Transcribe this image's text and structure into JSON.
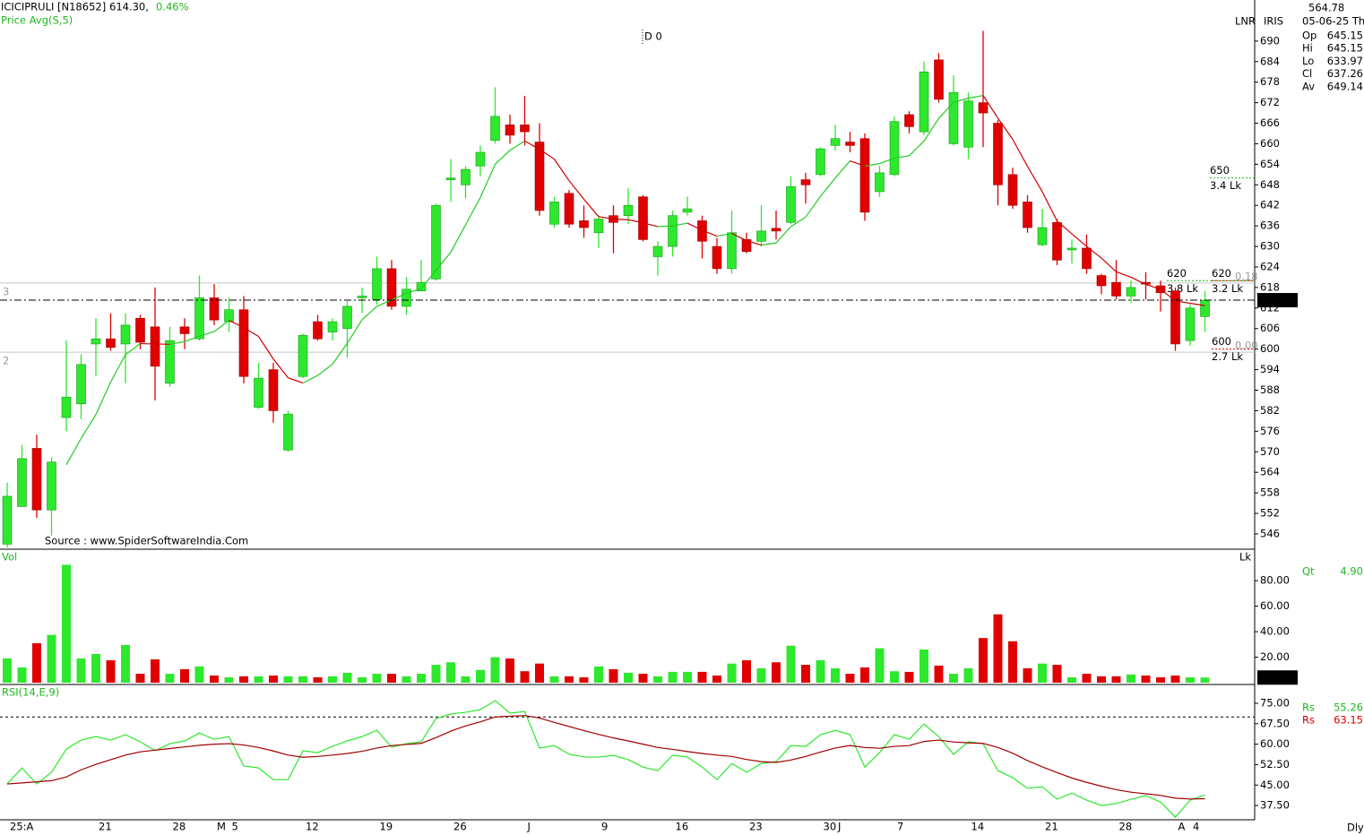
{
  "header": {
    "symbol": "ICICIPRULI [N18652]",
    "price": "614.30,",
    "change": "0.46%",
    "marker": "D 0",
    "source": "Source : www.SpiderSoftwareIndia.Com",
    "period": "Dly"
  },
  "info": {
    "value": "564.78",
    "date": "05-06-25 Th",
    "mode": "LNR",
    "name": "IRIS",
    "fields": [
      {
        "label": "Op",
        "value": "645.15"
      },
      {
        "label": "Hi",
        "value": "645.15"
      },
      {
        "label": "Lo",
        "value": "633.97"
      },
      {
        "label": "Cl",
        "value": "637.26"
      },
      {
        "label": "Av",
        "value": "649.14"
      }
    ],
    "qt": {
      "label": "Qt",
      "value": "4.90"
    },
    "rs": [
      {
        "label": "Rs",
        "value": "55.26"
      },
      {
        "label": "Rs",
        "value": "63.15"
      }
    ]
  },
  "chart_data": [
    {
      "type": "candlestick",
      "categories": [
        "25:A",
        null,
        null,
        null,
        null,
        null,
        "21",
        null,
        null,
        null,
        null,
        "28",
        null,
        null,
        "M",
        "5",
        null,
        null,
        null,
        null,
        "12",
        null,
        null,
        null,
        null,
        "19",
        null,
        null,
        null,
        null,
        "26",
        null,
        null,
        null,
        null,
        "J",
        null,
        null,
        null,
        null,
        "9",
        null,
        null,
        null,
        null,
        "16",
        null,
        null,
        null,
        null,
        "23",
        null,
        null,
        null,
        null,
        "30",
        "J",
        null,
        null,
        null,
        "7",
        null,
        null,
        null,
        null,
        "14",
        null,
        null,
        null,
        null,
        "21",
        null,
        null,
        null,
        null,
        "28",
        null,
        null,
        null,
        "A",
        "4",
        null
      ],
      "open": [
        543,
        554,
        571,
        553,
        580,
        584,
        601.5,
        603,
        601.5,
        609,
        606.5,
        590,
        606.5,
        603,
        615,
        608,
        611.5,
        583,
        594,
        570.5,
        592,
        608,
        605,
        606,
        615,
        614.5,
        623.5,
        612.5,
        617,
        620.5,
        649.5,
        648,
        653.5,
        661,
        665.5,
        665.5,
        660.5,
        636.5,
        645.5,
        637.5,
        634,
        639,
        639,
        644.5,
        627,
        630,
        640,
        637.5,
        630,
        623.5,
        632,
        631.5,
        635.3,
        637,
        649.5,
        651,
        659.5,
        660.5,
        661.5,
        646,
        651,
        668.5,
        663.5,
        684.5,
        660,
        659,
        672,
        666,
        651,
        643,
        630.5,
        637,
        629,
        629.5,
        621.5,
        619.5,
        615.5,
        619.5,
        618.5,
        617,
        602.5,
        609.5
      ],
      "high": [
        561,
        572,
        575,
        568.5,
        602.5,
        598.5,
        609,
        610.5,
        610.5,
        610,
        618,
        606.5,
        609,
        621.5,
        619,
        615,
        615.5,
        596,
        596,
        582,
        604.5,
        610,
        609,
        614,
        618,
        627,
        626,
        621,
        626,
        642.5,
        655.5,
        653.5,
        659.5,
        676.5,
        668.5,
        674,
        666,
        644.5,
        646.5,
        642,
        639,
        642,
        647,
        645,
        631.5,
        640.5,
        644.5,
        639,
        632.5,
        640.5,
        634,
        642,
        640.5,
        650.5,
        651.5,
        659,
        665.5,
        663.5,
        663,
        653.5,
        668,
        669.5,
        684,
        686.5,
        680,
        675,
        693,
        667,
        653,
        645,
        641,
        638,
        632,
        633.5,
        622,
        626,
        620,
        622.5,
        620,
        618,
        613,
        617
      ],
      "low": [
        542,
        554,
        550.7,
        545.5,
        576,
        579.5,
        592,
        599.5,
        590,
        600,
        585,
        589,
        600,
        602.5,
        607,
        605,
        590,
        582.5,
        578.5,
        570,
        591.5,
        602.5,
        602.5,
        597.5,
        610.5,
        613,
        611.5,
        610,
        617,
        620,
        643,
        644,
        650.5,
        660,
        660,
        659.5,
        639,
        635.5,
        635.5,
        632.5,
        629.5,
        628,
        636.5,
        631.5,
        621.5,
        627,
        639,
        626.5,
        622,
        622,
        628,
        630,
        632,
        636.5,
        642.5,
        650.5,
        658,
        657.5,
        637.5,
        644.5,
        650.5,
        663,
        662.5,
        672,
        659.5,
        655.5,
        659,
        642,
        641,
        634,
        630,
        624.5,
        625,
        622,
        616,
        614.5,
        613.5,
        614.5,
        611,
        599.5,
        601,
        605
      ],
      "close": [
        557,
        568,
        553,
        567,
        586,
        595.5,
        603,
        600.5,
        607,
        602,
        595,
        602.5,
        604.5,
        615,
        608.5,
        611.5,
        592,
        591.5,
        582,
        581,
        604,
        603,
        608,
        612.5,
        615.5,
        623.5,
        612.5,
        617.5,
        619.5,
        642,
        650,
        652.5,
        657.5,
        668,
        662.5,
        663.5,
        640.5,
        643,
        636.5,
        635.5,
        638,
        637,
        642,
        632,
        630,
        639,
        641,
        631.5,
        623.5,
        634,
        628.5,
        634.5,
        634.5,
        647.5,
        648,
        658.5,
        661.5,
        659.5,
        640,
        651.5,
        666.5,
        665,
        681,
        673,
        675,
        672.5,
        669,
        648,
        642,
        635.5,
        635.5,
        626,
        629.5,
        623.5,
        618.5,
        615.5,
        618,
        619,
        616.5,
        601.5,
        612,
        614.3
      ],
      "series": [
        {
          "name": "Price Avg(S,5)",
          "values": [
            null,
            null,
            null,
            null,
            566.2,
            573.9,
            580.9,
            590.4,
            598.4,
            601.6,
            601.5,
            601.4,
            602.2,
            603.8,
            605.1,
            608.4,
            606.3,
            603.7,
            597.1,
            591.6,
            590.1,
            592.3,
            595.6,
            601.7,
            608.6,
            612.5,
            614.4,
            616.3,
            617.7,
            623,
            628.3,
            636.3,
            644.3,
            654,
            658.1,
            660.8,
            658.4,
            655.5,
            649.2,
            643.8,
            638.7,
            638,
            637.8,
            636.9,
            635.8,
            636,
            636.8,
            634.7,
            633,
            633.8,
            631.7,
            630.4,
            631,
            635.8,
            638.6,
            644.6,
            650,
            655,
            653.5,
            654.2,
            655.8,
            656.5,
            660.8,
            667.4,
            672.1,
            673.3,
            674.1,
            667.5,
            661.3,
            653.4,
            646,
            637.4,
            633.7,
            630,
            626.6,
            622.6,
            621,
            618.9,
            617.5,
            614.1,
            613.4,
            612.7
          ]
        }
      ],
      "ylim": [
        541.8,
        702
      ],
      "yticks": [
        546,
        552,
        558,
        564,
        570,
        576,
        582,
        588,
        594,
        600,
        606,
        612,
        618,
        624,
        630,
        636,
        642,
        648,
        654,
        660,
        666,
        672,
        678,
        684,
        690
      ],
      "last": {
        "value": 614.3,
        "label": "614.30"
      },
      "hlines": [
        {
          "value": 619.3,
          "left": "3",
          "right": "0.18"
        },
        {
          "value": 599.1,
          "left": "2",
          "right": "0.00"
        }
      ],
      "annotations": [
        {
          "value": 650,
          "volume": "3.4 Lk",
          "color": "#1fb81f"
        },
        {
          "value": 620,
          "volume": "3.8 Lk",
          "color": "#1fb81f"
        },
        {
          "value": 620,
          "volume": "3.2 Lk",
          "color": "#d40000"
        },
        {
          "value": 600,
          "volume": "2.7 Lk",
          "color": "#d40000"
        }
      ]
    },
    {
      "type": "bar",
      "title": "Vol",
      "unit": "Lk",
      "values": [
        19,
        12,
        31,
        37.5,
        92.5,
        19,
        22.5,
        17.6,
        29.6,
        7,
        18.3,
        7,
        10.6,
        12.7,
        5.6,
        4.2,
        5,
        5,
        5.6,
        5,
        5,
        4.2,
        5,
        7.8,
        4.2,
        7,
        7,
        5,
        7,
        14,
        16,
        5,
        10,
        20,
        19,
        9,
        15,
        5,
        5,
        4.2,
        12.7,
        10.6,
        7.8,
        7,
        5,
        8.5,
        8.5,
        8.5,
        5.6,
        15,
        17.6,
        11.3,
        16,
        29,
        14,
        17.6,
        11.3,
        7,
        12,
        27,
        9,
        8.5,
        26,
        13.4,
        7,
        11.3,
        35,
        53.6,
        32.5,
        11.3,
        15,
        14,
        4.2,
        7,
        5,
        5,
        6.4,
        5.6,
        4.2,
        5.6,
        4.2,
        4.04
      ],
      "ylim": [
        0,
        104
      ],
      "yticks": [
        {
          "value": 20,
          "label": "20.00"
        },
        {
          "value": 40,
          "label": "40.00"
        },
        {
          "value": 60,
          "label": "60.00"
        },
        {
          "value": 80,
          "label": "80.00"
        }
      ],
      "last": {
        "value": 4.04,
        "label": "4.04"
      }
    },
    {
      "type": "line",
      "title": "RSI(14,E,9)",
      "series": [
        {
          "color": "#2ee82e",
          "values": [
            45.4,
            51.3,
            45.4,
            49.7,
            58.2,
            61.5,
            62.8,
            61.5,
            63.5,
            60.9,
            57.6,
            60.2,
            61.2,
            64.1,
            61.8,
            62.8,
            52,
            51.3,
            47,
            47,
            57.6,
            56.9,
            59.2,
            61.2,
            62.8,
            65.1,
            58.9,
            60.2,
            60.9,
            69.4,
            71.1,
            71.7,
            72.7,
            76,
            71.4,
            72,
            58.6,
            59.5,
            56.3,
            55.3,
            55.3,
            55.9,
            54.3,
            51.6,
            50.3,
            55.9,
            55.3,
            51.6,
            47,
            52.9,
            49.7,
            52.9,
            53.6,
            59.5,
            59.2,
            63.5,
            65.1,
            63.5,
            51.6,
            56.9,
            63.5,
            61.8,
            67.4,
            62.8,
            56.3,
            60.9,
            60.2,
            50.3,
            47.7,
            43.8,
            44.4,
            39.8,
            42.1,
            39.5,
            37.5,
            38.2,
            39.8,
            41.1,
            38.8,
            33.2,
            39.5,
            41.4
          ]
        },
        {
          "color": "#a00000",
          "values": [
            45.4,
            45.8,
            46.2,
            46.6,
            48,
            50.6,
            52.6,
            54.3,
            56,
            57.2,
            57.8,
            58.4,
            59,
            59.6,
            60,
            60.2,
            59.7,
            58.8,
            57.5,
            56,
            55.2,
            55.5,
            56,
            56.6,
            57.4,
            58.6,
            59.5,
            59.9,
            60.3,
            62.4,
            64.8,
            66.7,
            68.2,
            70,
            70.3,
            70.5,
            69.6,
            68,
            66.5,
            65,
            63.6,
            62.3,
            61.2,
            60,
            58.8,
            58.1,
            57.3,
            56.6,
            56,
            55.5,
            54.4,
            53.6,
            53.3,
            54.2,
            55.5,
            57.1,
            58.6,
            59.5,
            58.8,
            58.5,
            59.2,
            59.5,
            61,
            61.5,
            60.8,
            60.5,
            60.3,
            58.8,
            56.7,
            54,
            51.7,
            49.6,
            47.6,
            46,
            44.6,
            43.3,
            42.4,
            41.8,
            41.2,
            40.2,
            39.9,
            40
          ]
        }
      ],
      "ylim": [
        32.6,
        81.25
      ],
      "yticks": [
        {
          "value": 37.5,
          "label": "37.50"
        },
        {
          "value": 45,
          "label": "45.00"
        },
        {
          "value": 52.5,
          "label": "52.50"
        },
        {
          "value": 60,
          "label": "60.00"
        },
        {
          "value": 67.5,
          "label": "67.50"
        },
        {
          "value": 75,
          "label": "75.00"
        }
      ],
      "reference": 70
    }
  ]
}
